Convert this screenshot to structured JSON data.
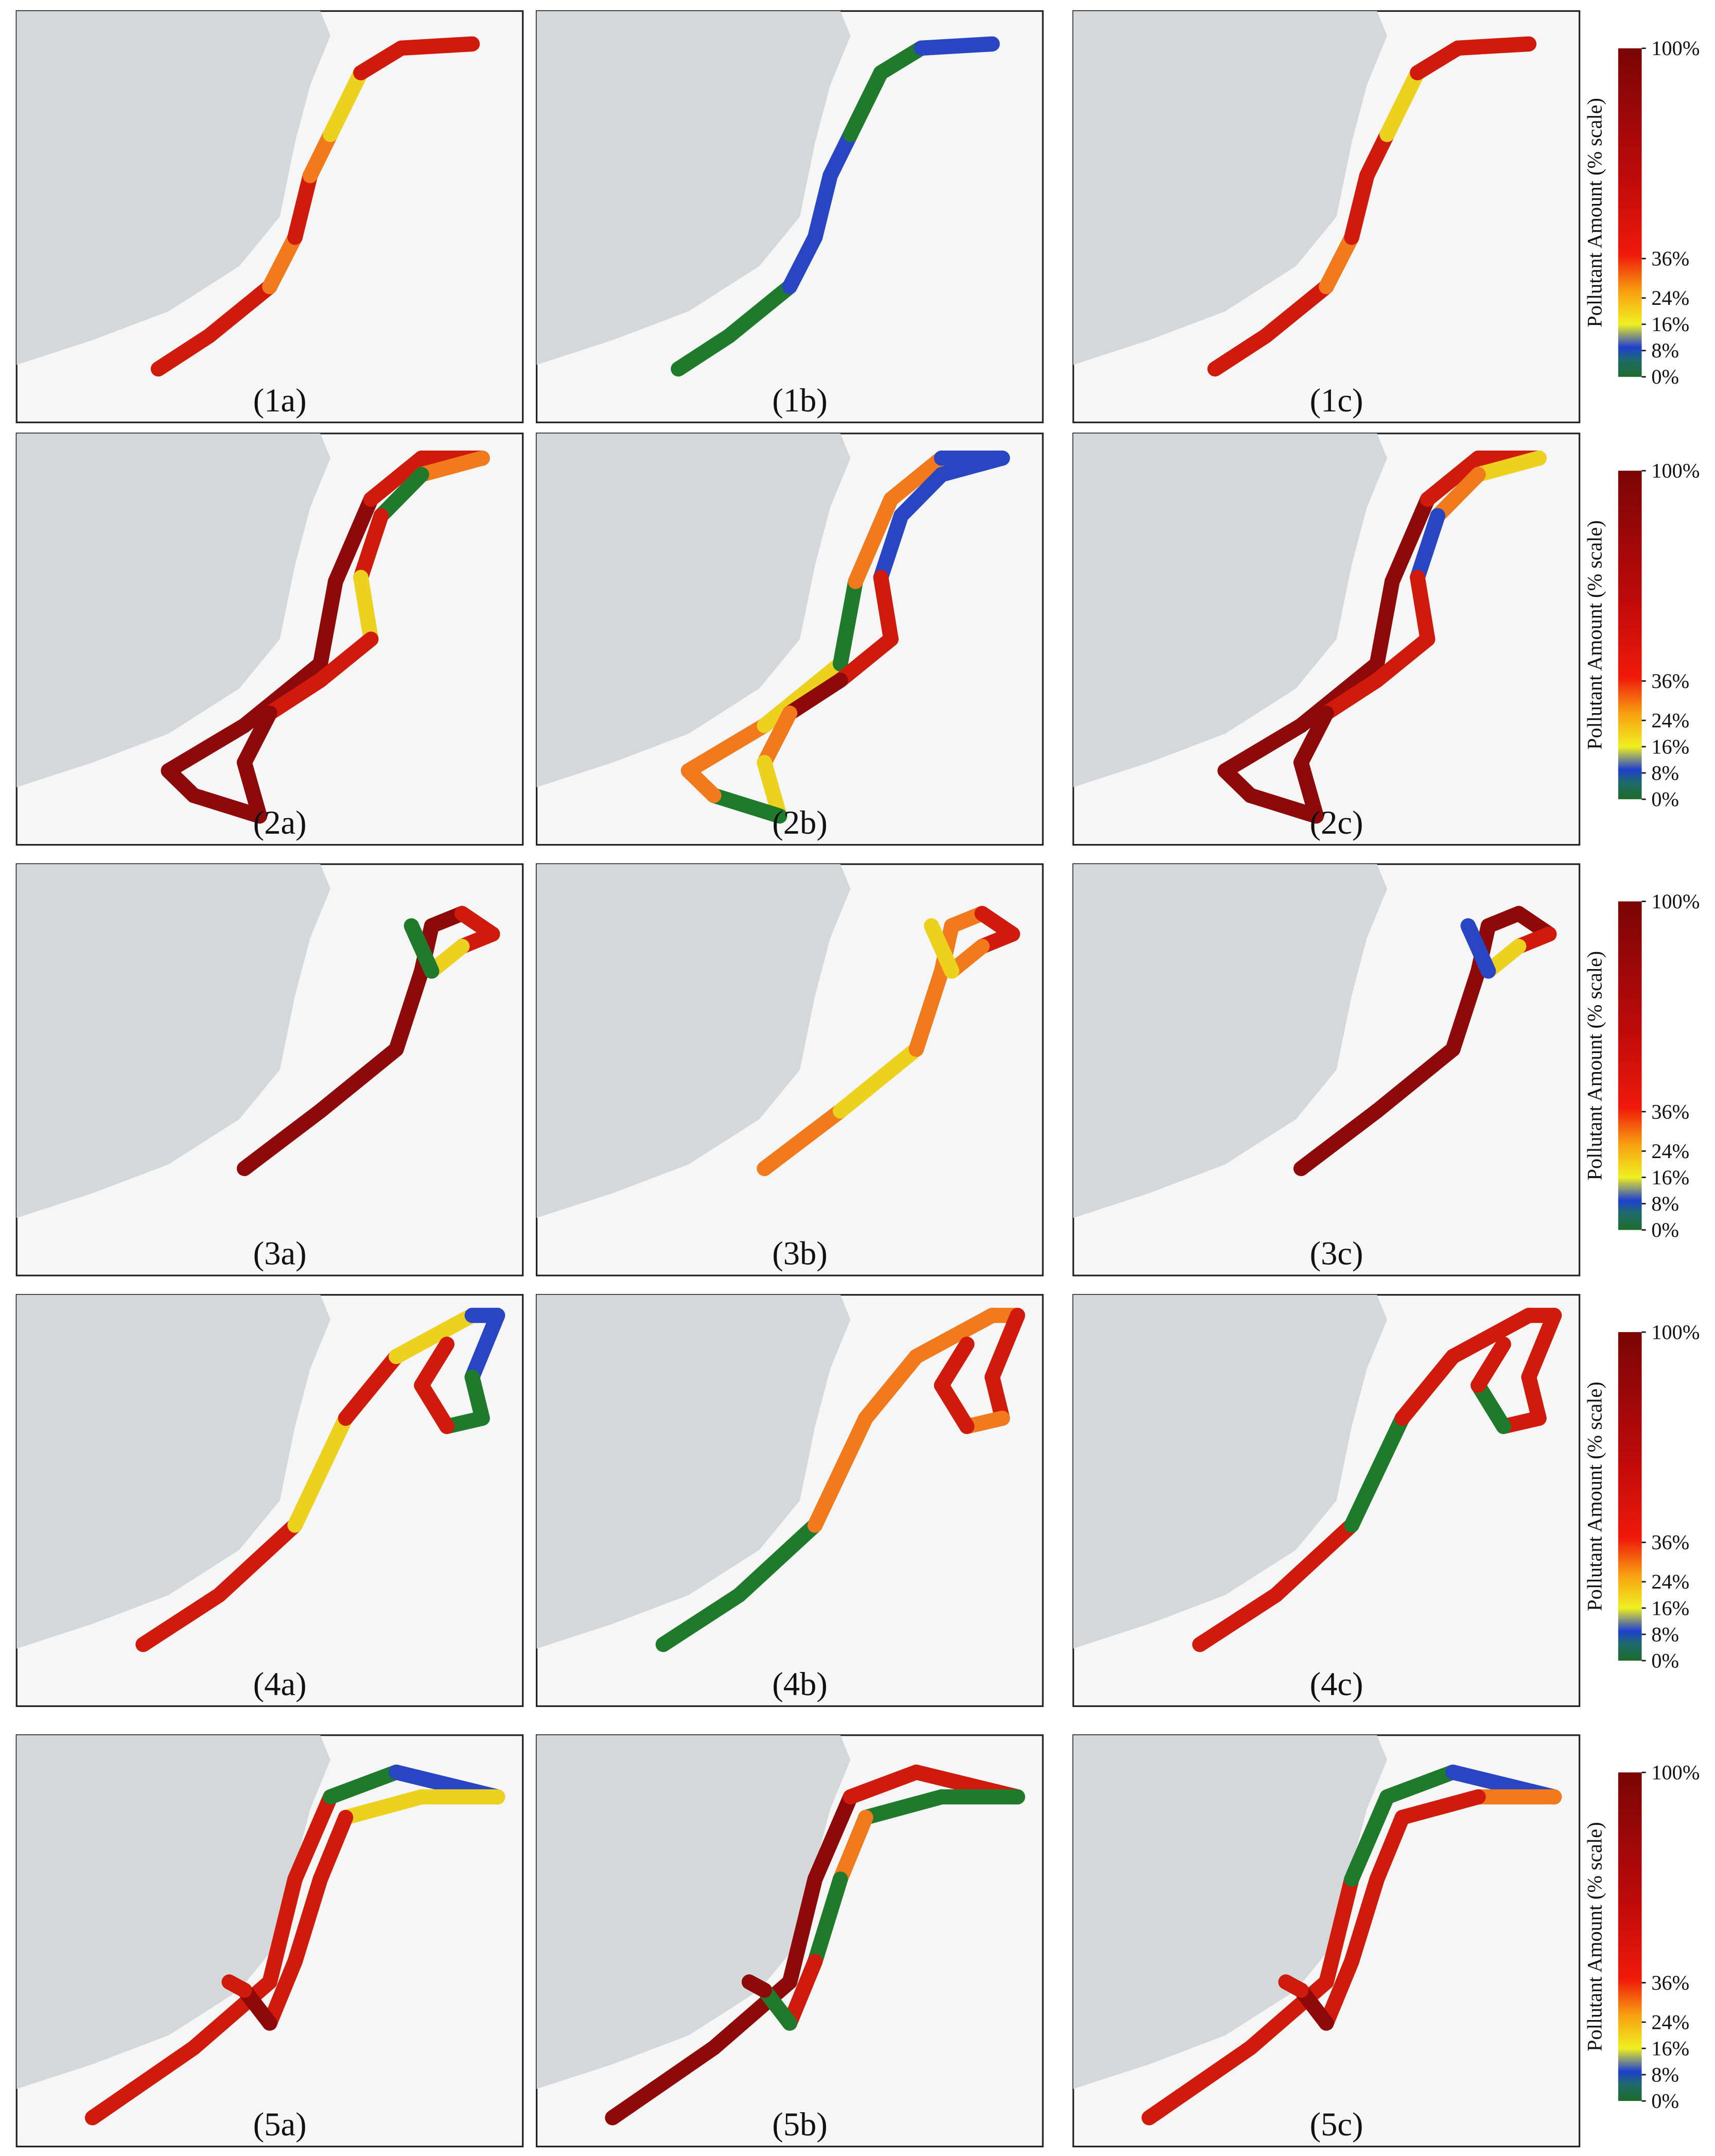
{
  "panels": [
    "(1a)",
    "(1b)",
    "(1c)",
    "(2a)",
    "(2b)",
    "(2c)",
    "(3a)",
    "(3b)",
    "(3c)",
    "(4a)",
    "(4b)",
    "(4c)",
    "(5a)",
    "(5b)",
    "(5c)"
  ],
  "colorbar": {
    "title": "Pollutant Amount (% scale)",
    "lim": [
      0,
      100
    ],
    "ticks": [
      {
        "value": 100,
        "label": "100%"
      },
      {
        "value": 36,
        "label": "36%"
      },
      {
        "value": 24,
        "label": "24%"
      },
      {
        "value": 16,
        "label": "16%"
      },
      {
        "value": 8,
        "label": "8%"
      },
      {
        "value": 0,
        "label": "0%"
      }
    ]
  }
}
